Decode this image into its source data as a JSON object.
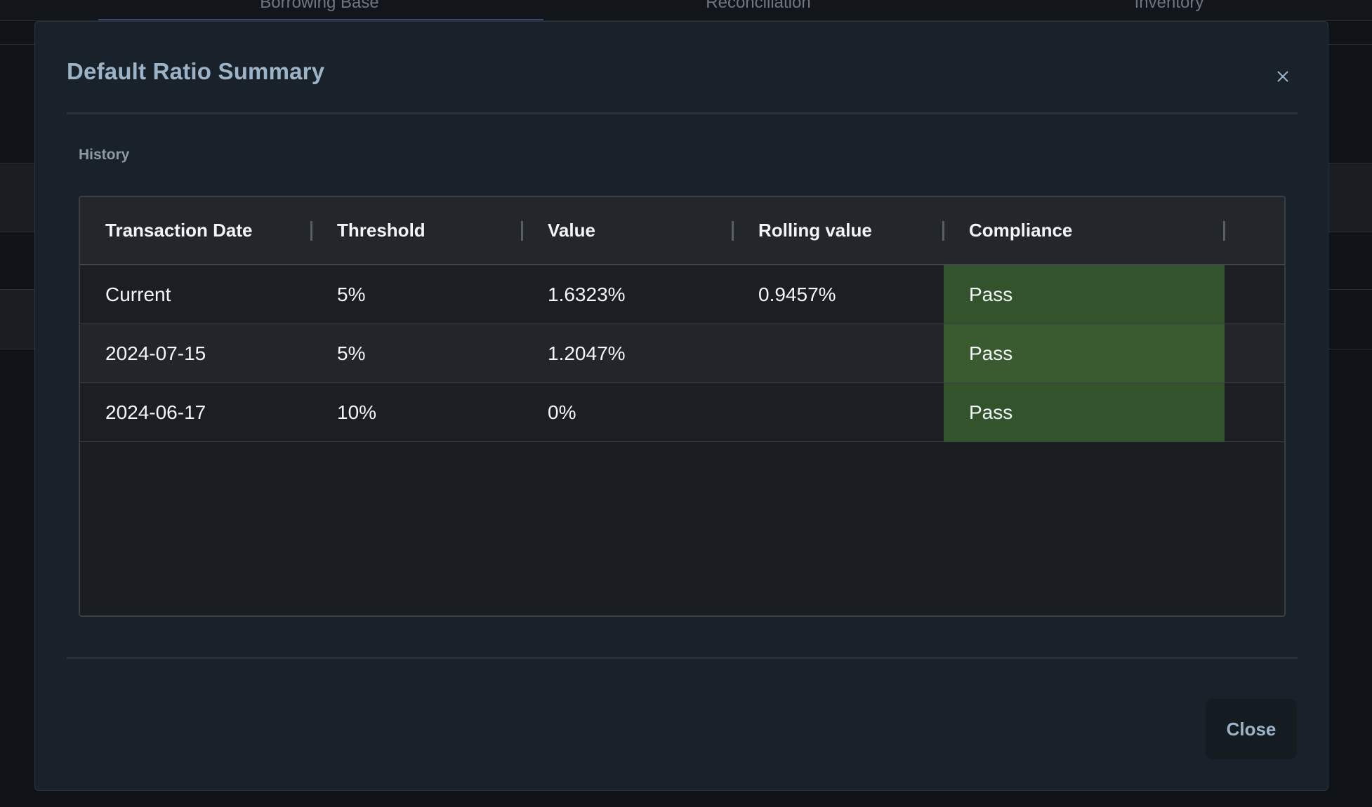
{
  "background": {
    "tabs": [
      "Borrowing Base",
      "Reconciliation",
      "Inventory"
    ]
  },
  "modal": {
    "title": "Default Ratio Summary",
    "close_icon": "close-icon",
    "section_label": "History",
    "columns": [
      "Transaction Date",
      "Threshold",
      "Value",
      "Rolling value",
      "Compliance"
    ],
    "rows": [
      {
        "date": "Current",
        "threshold": "5%",
        "value": "1.6323%",
        "rolling": "0.9457%",
        "compliance": "Pass"
      },
      {
        "date": "2024-07-15",
        "threshold": "5%",
        "value": "1.2047%",
        "rolling": "",
        "compliance": "Pass"
      },
      {
        "date": "2024-06-17",
        "threshold": "10%",
        "value": "0%",
        "rolling": "",
        "compliance": "Pass"
      }
    ],
    "close_button_label": "Close"
  },
  "colors": {
    "modal_bg": "#19222a",
    "title": "#9db3c8",
    "pass_bg": "#33532d"
  }
}
